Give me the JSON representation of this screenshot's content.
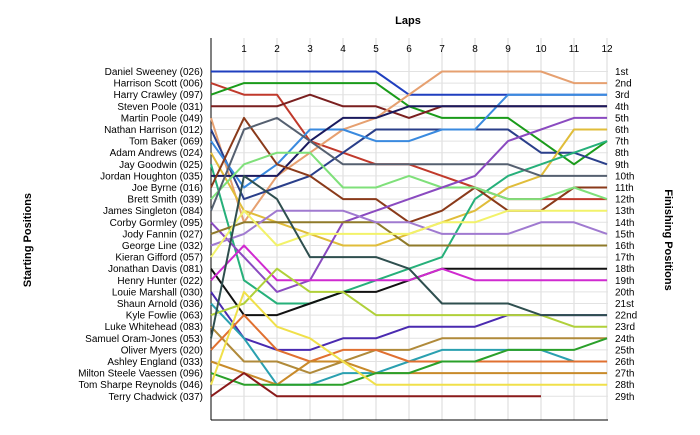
{
  "chart_data": {
    "type": "line",
    "title": "Laps",
    "ylabel_left": "Starting Positions",
    "ylabel_right": "Finishing Positions",
    "laps": [
      1,
      2,
      3,
      4,
      5,
      6,
      7,
      8,
      9,
      10,
      11,
      12
    ],
    "finishing_labels": [
      "1st",
      "2nd",
      "3rd",
      "4th",
      "5th",
      "6th",
      "7th",
      "8th",
      "9th",
      "10th",
      "11th",
      "12th",
      "13th",
      "14th",
      "15th",
      "16th",
      "17th",
      "18th",
      "19th",
      "20th",
      "21st",
      "22nd",
      "23rd",
      "24th",
      "25th",
      "26th",
      "27th",
      "28th",
      "29th"
    ],
    "grid": true,
    "series": [
      {
        "name": "Daniel Sweeney (026)",
        "color": "#1f3fbf",
        "positions": [
          1,
          1,
          1,
          1,
          1,
          1,
          3,
          3,
          3,
          3,
          3,
          3,
          3
        ]
      },
      {
        "name": "Harrison Scott (006)",
        "color": "#c0392b",
        "positions": [
          2,
          3,
          3,
          7,
          8,
          9,
          9,
          10,
          11,
          12,
          12,
          12,
          12
        ]
      },
      {
        "name": "Harry Crawley (097)",
        "color": "#1a9b1a",
        "positions": [
          3,
          2,
          2,
          2,
          2,
          2,
          4,
          5,
          5,
          5,
          7,
          9,
          7
        ]
      },
      {
        "name": "Steven Poole (031)",
        "color": "#7a1f1f",
        "positions": [
          4,
          4,
          4,
          3,
          4,
          4,
          5,
          4,
          4,
          4,
          4,
          4,
          4
        ]
      },
      {
        "name": "Martin Poole (049)",
        "color": "#e6a070",
        "positions": [
          5,
          14,
          10,
          8,
          6,
          5,
          3,
          1,
          1,
          1,
          1,
          2,
          2
        ]
      },
      {
        "name": "Nathan Harrison (012)",
        "color": "#2a3f8a",
        "positions": [
          6,
          12,
          11,
          10,
          8,
          6,
          6,
          6,
          6,
          6,
          8,
          8,
          9
        ]
      },
      {
        "name": "Tom Baker (069)",
        "color": "#3a8adf",
        "positions": [
          7,
          11,
          9,
          6,
          6,
          7,
          7,
          6,
          6,
          3,
          3,
          3,
          3
        ]
      },
      {
        "name": "Adam Andrews (024)",
        "color": "#e0bd3a",
        "positions": [
          8,
          13,
          14,
          15,
          16,
          16,
          15,
          14,
          13,
          11,
          10,
          6,
          6
        ]
      },
      {
        "name": "Jay Goodwin (025)",
        "color": "#26b07a",
        "positions": [
          9,
          19,
          21,
          21,
          20,
          19,
          18,
          17,
          12,
          10,
          9,
          8,
          7
        ]
      },
      {
        "name": "Jordan Houghton (035)",
        "color": "#1a1a5e",
        "positions": [
          10,
          10,
          10,
          7,
          5,
          5,
          4,
          4,
          4,
          4,
          4,
          4,
          4
        ]
      },
      {
        "name": "Joe Byrne (016)",
        "color": "#8a3a1a",
        "positions": [
          11,
          5,
          9,
          10,
          12,
          12,
          14,
          13,
          11,
          13,
          13,
          11,
          11
        ]
      },
      {
        "name": "Brett Smith (039)",
        "color": "#7fe07a",
        "positions": [
          12,
          9,
          8,
          8,
          11,
          11,
          10,
          11,
          11,
          12,
          12,
          11,
          12
        ]
      },
      {
        "name": "James Singleton (084)",
        "color": "#556070",
        "positions": [
          13,
          6,
          5,
          7,
          9,
          9,
          9,
          9,
          9,
          9,
          10,
          10,
          10
        ]
      },
      {
        "name": "Corby Gormley (095)",
        "color": "#8a4ac0",
        "positions": [
          14,
          17,
          20,
          19,
          14,
          13,
          12,
          11,
          10,
          7,
          6,
          5,
          5
        ]
      },
      {
        "name": "Jody Fannin (027)",
        "color": "#8f7a2a",
        "positions": [
          15,
          14,
          14,
          14,
          14,
          14,
          16,
          16,
          16,
          16,
          16,
          16,
          16
        ]
      },
      {
        "name": "George Line (032)",
        "color": "#a07ad0",
        "positions": [
          16,
          15,
          13,
          13,
          13,
          14,
          14,
          15,
          15,
          15,
          14,
          14,
          15
        ]
      },
      {
        "name": "Kieran Gifford (057)",
        "color": "#f2f26a",
        "positions": [
          17,
          13,
          16,
          15,
          15,
          15,
          15,
          14,
          14,
          13,
          13,
          13,
          13
        ]
      },
      {
        "name": "Jonathan Davis (081)",
        "color": "#111111",
        "positions": [
          18,
          22,
          22,
          21,
          20,
          20,
          19,
          18,
          18,
          18,
          18,
          18,
          18
        ]
      },
      {
        "name": "Henry Hunter (022)",
        "color": "#d02ad0",
        "positions": [
          19,
          16,
          19,
          19,
          19,
          19,
          19,
          18,
          19,
          19,
          19,
          19,
          19
        ]
      },
      {
        "name": "Louie Marshall (030)",
        "color": "#4a2ab0",
        "positions": [
          20,
          24,
          25,
          25,
          24,
          24,
          23,
          23,
          23,
          22,
          22,
          22,
          22
        ]
      },
      {
        "name": "Shaun Arnold (036)",
        "color": "#2aa0b0",
        "positions": [
          21,
          24,
          28,
          28,
          27,
          27,
          26,
          25,
          25,
          25,
          25,
          26,
          26
        ]
      },
      {
        "name": "Kyle Fowlie (063)",
        "color": "#b0d03a",
        "positions": [
          22,
          21,
          18,
          20,
          20,
          22,
          22,
          22,
          22,
          22,
          22,
          23,
          23
        ]
      },
      {
        "name": "Luke Whitehead (083)",
        "color": "#b08a3a",
        "positions": [
          23,
          26,
          26,
          27,
          26,
          25,
          25,
          24,
          24,
          24,
          24,
          24,
          24
        ]
      },
      {
        "name": "Samuel Oram-Jones (053)",
        "color": "#2f4f4f",
        "positions": [
          24,
          10,
          12,
          17,
          17,
          17,
          18,
          21,
          21,
          21,
          22,
          22,
          22
        ]
      },
      {
        "name": "Oliver Myers (020)",
        "color": "#e07030",
        "positions": [
          25,
          22,
          25,
          26,
          25,
          25,
          26,
          26,
          26,
          26,
          26,
          26,
          26
        ]
      },
      {
        "name": "Ashley England (033)",
        "color": "#c88a2a",
        "positions": [
          26,
          27,
          28,
          26,
          26,
          27,
          27,
          27,
          27,
          27,
          27,
          27,
          27
        ]
      },
      {
        "name": "Milton Steele Vaessen (096)",
        "color": "#2aa02a",
        "positions": [
          27,
          28,
          28,
          28,
          28,
          27,
          27,
          26,
          26,
          25,
          25,
          25,
          24
        ]
      },
      {
        "name": "Tom Sharpe Reynolds (046)",
        "color": "#f0e04a",
        "positions": [
          28,
          20,
          23,
          24,
          26,
          28,
          28,
          28,
          28,
          28,
          28,
          28,
          28
        ]
      },
      {
        "name": "Terry Chadwick (037)",
        "color": "#8a1a1a",
        "positions": [
          29,
          27,
          29,
          29,
          29,
          29,
          29,
          29,
          29,
          29,
          29,
          null,
          null
        ]
      }
    ]
  }
}
